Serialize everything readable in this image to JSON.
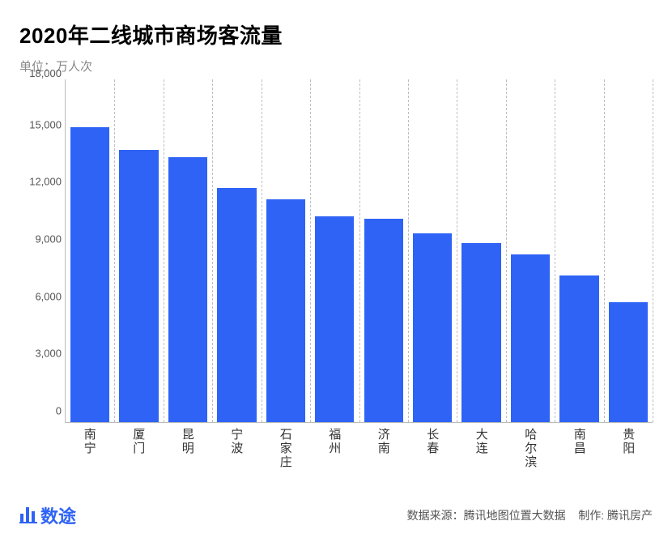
{
  "chart": {
    "type": "bar",
    "title": "2020年二线城市商场客流量",
    "title_fontsize": 26,
    "title_color": "#000000",
    "subtitle": "单位：万人次",
    "subtitle_fontsize": 15,
    "subtitle_color": "#888888",
    "background_color": "#ffffff",
    "bar_color": "#2e63f6",
    "bar_width_ratio": 0.8,
    "axis_line_color": "#bbbbbb",
    "grid_v_color": "#bfbfbf",
    "grid_v_style": "dashed",
    "ylim": [
      0,
      18000
    ],
    "ytick_step": 3000,
    "yticks": [
      "0",
      "3,000",
      "6,000",
      "9,000",
      "12,000",
      "15,000",
      "18,000"
    ],
    "ylabel_fontsize": 13,
    "ylabel_color": "#555555",
    "xlabel_fontsize": 15,
    "xlabel_color": "#333333",
    "xlabel_orientation": "vertical",
    "categories": [
      "南宁",
      "厦门",
      "昆明",
      "宁波",
      "石家庄",
      "福州",
      "济南",
      "长春",
      "大连",
      "哈尔滨",
      "南昌",
      "贵阳"
    ],
    "values": [
      15500,
      14300,
      13900,
      12300,
      11700,
      10800,
      10700,
      9900,
      9400,
      8800,
      7700,
      6300
    ]
  },
  "footer": {
    "brand_name": "数途",
    "brand_color": "#2e63f6",
    "source_label": "数据来源：",
    "source_value": "腾讯地图位置大数据",
    "made_by_label": "制作:",
    "made_by_value": "腾讯房产",
    "text_color": "#555555",
    "fontsize": 14
  }
}
